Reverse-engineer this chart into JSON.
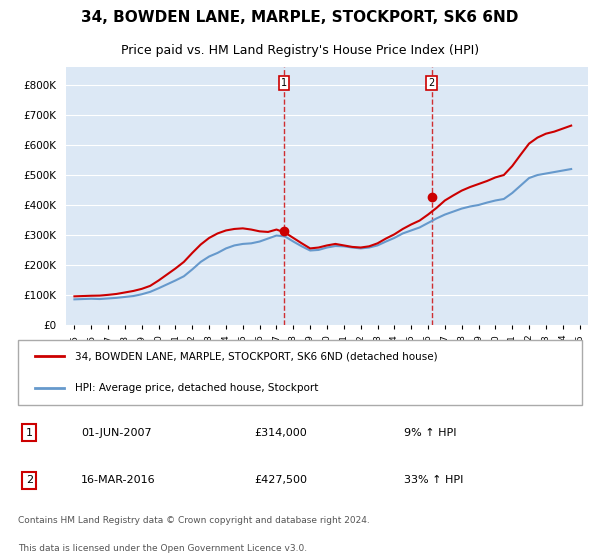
{
  "title": "34, BOWDEN LANE, MARPLE, STOCKPORT, SK6 6ND",
  "subtitle": "Price paid vs. HM Land Registry's House Price Index (HPI)",
  "legend_line1": "34, BOWDEN LANE, MARPLE, STOCKPORT, SK6 6ND (detached house)",
  "legend_line2": "HPI: Average price, detached house, Stockport",
  "footer1": "Contains HM Land Registry data © Crown copyright and database right 2024.",
  "footer2": "This data is licensed under the Open Government Licence v3.0.",
  "sale1_label": "1",
  "sale1_date": "01-JUN-2007",
  "sale1_price": "£314,000",
  "sale1_hpi": "9% ↑ HPI",
  "sale2_label": "2",
  "sale2_date": "16-MAR-2016",
  "sale2_price": "£427,500",
  "sale2_hpi": "33% ↑ HPI",
  "sale1_year": 2007.42,
  "sale1_value": 314000,
  "sale2_year": 2016.21,
  "sale2_value": 427500,
  "price_color": "#cc0000",
  "hpi_color": "#6699cc",
  "vline_color": "#cc0000",
  "marker_color": "#cc0000",
  "ylim_min": 0,
  "ylim_max": 860000,
  "xlim_min": 1994.5,
  "xlim_max": 2025.5,
  "background_color": "#f0f4ff",
  "plot_bg": "#dce8f5",
  "hpi_years": [
    1995,
    1995.5,
    1996,
    1996.5,
    1997,
    1997.5,
    1998,
    1998.5,
    1999,
    1999.5,
    2000,
    2000.5,
    2001,
    2001.5,
    2002,
    2002.5,
    2003,
    2003.5,
    2004,
    2004.5,
    2005,
    2005.5,
    2006,
    2006.5,
    2007,
    2007.5,
    2008,
    2008.5,
    2009,
    2009.5,
    2010,
    2010.5,
    2011,
    2011.5,
    2012,
    2012.5,
    2013,
    2013.5,
    2014,
    2014.5,
    2015,
    2015.5,
    2016,
    2016.5,
    2017,
    2017.5,
    2018,
    2018.5,
    2019,
    2019.5,
    2020,
    2020.5,
    2021,
    2021.5,
    2022,
    2022.5,
    2023,
    2023.5,
    2024,
    2024.5
  ],
  "hpi_values": [
    85000,
    86000,
    87000,
    86000,
    88000,
    90000,
    93000,
    96000,
    102000,
    110000,
    122000,
    135000,
    148000,
    162000,
    185000,
    210000,
    228000,
    240000,
    255000,
    265000,
    270000,
    272000,
    278000,
    288000,
    298000,
    295000,
    278000,
    262000,
    248000,
    250000,
    258000,
    263000,
    262000,
    258000,
    255000,
    258000,
    265000,
    278000,
    290000,
    305000,
    315000,
    325000,
    340000,
    355000,
    368000,
    378000,
    388000,
    395000,
    400000,
    408000,
    415000,
    420000,
    440000,
    465000,
    490000,
    500000,
    505000,
    510000,
    515000,
    520000
  ],
  "price_years": [
    1995,
    1995.5,
    1996,
    1996.5,
    1997,
    1997.5,
    1998,
    1998.5,
    1999,
    1999.5,
    2000,
    2000.5,
    2001,
    2001.5,
    2002,
    2002.5,
    2003,
    2003.5,
    2004,
    2004.5,
    2005,
    2005.5,
    2006,
    2006.5,
    2007,
    2007.5,
    2008,
    2008.5,
    2009,
    2009.5,
    2010,
    2010.5,
    2011,
    2011.5,
    2012,
    2012.5,
    2013,
    2013.5,
    2014,
    2014.5,
    2015,
    2015.5,
    2016,
    2016.5,
    2017,
    2017.5,
    2018,
    2018.5,
    2019,
    2019.5,
    2020,
    2020.5,
    2021,
    2021.5,
    2022,
    2022.5,
    2023,
    2023.5,
    2024,
    2024.5
  ],
  "price_values": [
    95000,
    96000,
    97000,
    97500,
    100000,
    103000,
    108000,
    113000,
    120000,
    130000,
    148000,
    168000,
    188000,
    210000,
    240000,
    268000,
    290000,
    305000,
    315000,
    320000,
    322000,
    318000,
    312000,
    310000,
    318000,
    308000,
    290000,
    272000,
    255000,
    258000,
    265000,
    270000,
    265000,
    260000,
    258000,
    262000,
    272000,
    288000,
    302000,
    320000,
    335000,
    348000,
    368000,
    390000,
    415000,
    432000,
    448000,
    460000,
    470000,
    480000,
    492000,
    500000,
    530000,
    568000,
    605000,
    625000,
    638000,
    645000,
    655000,
    665000
  ]
}
